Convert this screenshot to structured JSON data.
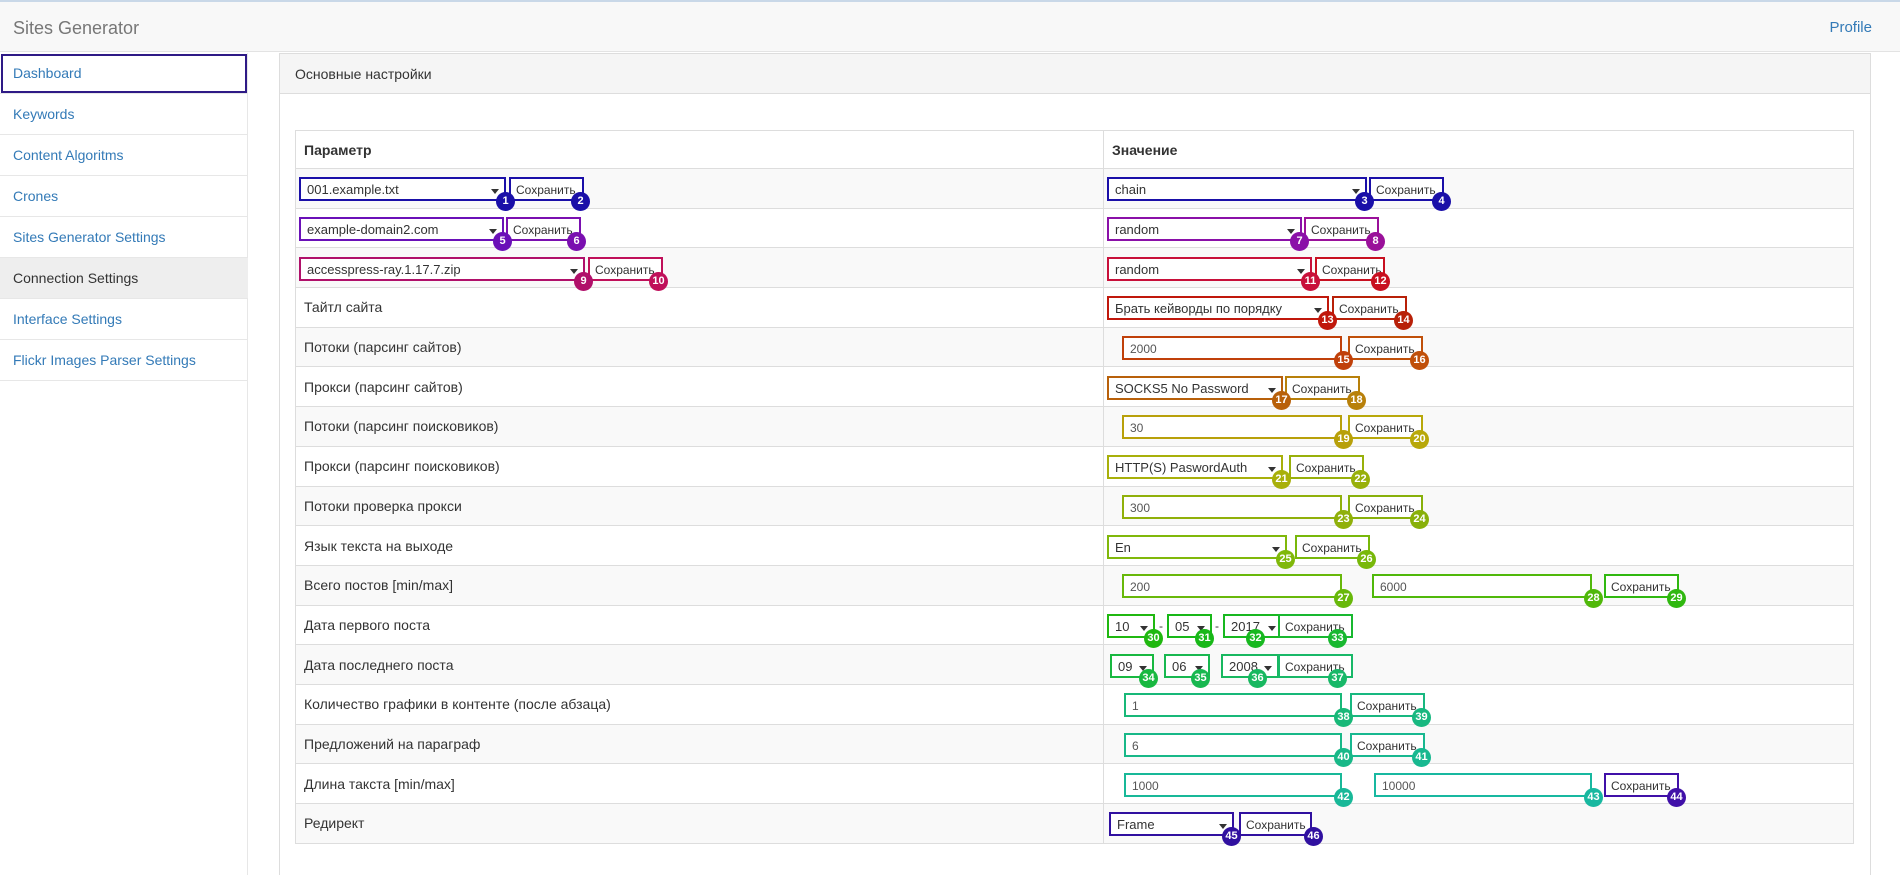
{
  "app": {
    "title": "Sites Generator",
    "profile_label": "Profile"
  },
  "sidebar": {
    "items": [
      {
        "label": "Dashboard"
      },
      {
        "label": "Keywords"
      },
      {
        "label": "Content Algoritms"
      },
      {
        "label": "Crones"
      },
      {
        "label": "Sites Generator Settings"
      },
      {
        "label": "Connection Settings"
      },
      {
        "label": "Interface Settings"
      },
      {
        "label": "Flickr Images Parser Settings"
      }
    ]
  },
  "panel": {
    "title": "Основные настройки",
    "headers": {
      "param": "Параметр",
      "value": "Значение"
    },
    "save_label": "Сохранить",
    "rows": [
      {
        "param_select": "001.example.txt",
        "value_select": "chain"
      },
      {
        "param_select": "example-domain2.com",
        "value_select": "random"
      },
      {
        "param_select": "accesspress-ray.1.17.7.zip",
        "value_select": "random"
      },
      {
        "label": "Тайтл сайта",
        "select": "Брать кейворды по порядку"
      },
      {
        "label": "Потоки (парсинг сайтов)",
        "input": "2000"
      },
      {
        "label": "Прокси (парсинг сайтов)",
        "select": "SOCKS5 No Password"
      },
      {
        "label": "Потоки (парсинг поисковиков)",
        "input": "30"
      },
      {
        "label": "Прокси (парсинг поисковиков)",
        "select": "HTTP(S) PaswordAuth"
      },
      {
        "label": "Потоки проверка прокси",
        "input": "300"
      },
      {
        "label": "Язык текста на выходе",
        "select": "En"
      },
      {
        "label": "Всего постов [min/max]",
        "min": "200",
        "max": "6000"
      },
      {
        "label": "Дата первого поста",
        "day": "10",
        "month": "05",
        "year": "2017"
      },
      {
        "label": "Дата последнего поста",
        "day": "09",
        "month": "06",
        "year": "2008"
      },
      {
        "label": "Количество графики в контенте (после абзаца)",
        "input": "1"
      },
      {
        "label": "Предложений на параграф",
        "input": "6"
      },
      {
        "label": "Длина такста [min/max]",
        "min": "1000",
        "max": "10000"
      },
      {
        "label": "Редирект",
        "select": "Frame"
      }
    ],
    "date_separator": "-"
  },
  "badges": [
    "1",
    "2",
    "3",
    "4",
    "5",
    "6",
    "7",
    "8",
    "9",
    "10",
    "11",
    "12",
    "13",
    "14",
    "15",
    "16",
    "17",
    "18",
    "19",
    "20",
    "21",
    "22",
    "23",
    "24",
    "25",
    "26",
    "27",
    "28",
    "29",
    "30",
    "31",
    "32",
    "33",
    "34",
    "35",
    "36",
    "37",
    "38",
    "39",
    "40",
    "41",
    "42",
    "43",
    "44",
    "45",
    "46"
  ],
  "badge_colors": [
    "#1a0fa8",
    "#1a0fa8",
    "#1a0fa8",
    "#1a0fa8",
    "#6a10b8",
    "#7a0fb0",
    "#8a10a8",
    "#9a109a",
    "#b0106a",
    "#c0105a",
    "#c8103a",
    "#c81020",
    "#c0180c",
    "#b82008",
    "#c0400a",
    "#c0500a",
    "#b8600a",
    "#b8800a",
    "#b8a00a",
    "#b8a80a",
    "#a8b00a",
    "#98b00a",
    "#90b00a",
    "#88b00a",
    "#80b80a",
    "#78b80a",
    "#68b80a",
    "#50b80a",
    "#30b810",
    "#20b810",
    "#18b818",
    "#18b820",
    "#18b830",
    "#18b840",
    "#18b850",
    "#18b860",
    "#18b868",
    "#18b878",
    "#18b880",
    "#18b888",
    "#18b890",
    "#18b898",
    "#18b8a0",
    "#4010a8",
    "#3010a0",
    "#3010a0"
  ]
}
